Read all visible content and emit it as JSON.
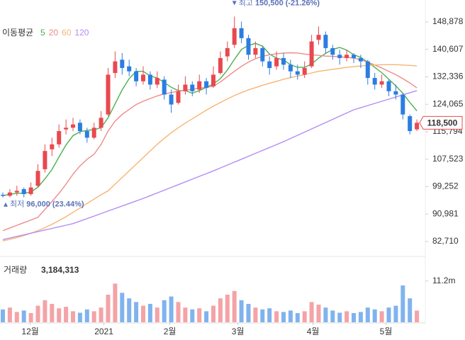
{
  "chart_data": {
    "type": "candlestick",
    "legend_label": "이동평균",
    "xlim": [
      -0.404,
      60.202
    ],
    "xticks": [
      {
        "value": 3.9,
        "label": "12월"
      },
      {
        "value": 14.4,
        "label": "2021"
      },
      {
        "value": 23.8,
        "label": "2월"
      },
      {
        "value": 33.5,
        "label": "3월"
      },
      {
        "value": 44.2,
        "label": "4월"
      },
      {
        "value": 54.6,
        "label": "5월"
      }
    ],
    "ylim": [
      80789,
      153787
    ],
    "yticks": [
      {
        "value": 82710,
        "label": "82,710"
      },
      {
        "value": 90981,
        "label": "90,981"
      },
      {
        "value": 99252,
        "label": "99,252"
      },
      {
        "value": 107523,
        "label": "107,523"
      },
      {
        "value": 115794,
        "label": "115,794"
      },
      {
        "value": 124065,
        "label": "124,065"
      },
      {
        "value": 132336,
        "label": "132,336"
      },
      {
        "value": 140607,
        "label": "140,607"
      },
      {
        "value": 148878,
        "label": "148,878"
      }
    ],
    "grid": false,
    "up_color": "#e8494f",
    "down_color": "#2b7de1",
    "open": [
      96800,
      96500,
      97500,
      98500,
      97000,
      99500,
      104500,
      110500,
      112000,
      116500,
      117000,
      118500,
      116000,
      114000,
      117000,
      121000,
      133500,
      137500,
      135500,
      134000,
      131000,
      133000,
      130000,
      131500,
      127000,
      124500,
      128000,
      130000,
      128500,
      131000,
      129500,
      133500,
      138500,
      142000,
      147000,
      144000,
      139000,
      141000,
      137000,
      135500,
      138000,
      136000,
      134000,
      133000,
      135500,
      143500,
      145000,
      141000,
      139000,
      138000,
      139000,
      138000,
      137000,
      132000,
      130000,
      131000,
      128000,
      127000,
      120500,
      116500
    ],
    "high": [
      97500,
      98500,
      99500,
      99000,
      100500,
      106000,
      112000,
      114000,
      118000,
      119500,
      120000,
      119500,
      117000,
      118500,
      122000,
      135000,
      140000,
      139500,
      137500,
      135000,
      135500,
      134000,
      134000,
      132500,
      128500,
      130000,
      132500,
      131000,
      133000,
      132000,
      135500,
      140000,
      143000,
      150500,
      149000,
      145000,
      143000,
      141500,
      138500,
      140000,
      139500,
      137500,
      136000,
      137000,
      145000,
      147500,
      146000,
      142000,
      140500,
      140500,
      139500,
      139000,
      137500,
      133500,
      133000,
      131500,
      130000,
      127500,
      121000,
      119500
    ],
    "low": [
      96000,
      96000,
      96500,
      96000,
      96500,
      99000,
      103500,
      108500,
      111000,
      115000,
      116000,
      115000,
      112500,
      113500,
      116000,
      120500,
      132000,
      133000,
      132500,
      129500,
      130000,
      128500,
      129000,
      125500,
      121500,
      124000,
      127000,
      126500,
      127500,
      127000,
      129000,
      133000,
      137000,
      141000,
      142500,
      137500,
      138000,
      135500,
      133000,
      134500,
      134500,
      132000,
      131500,
      132000,
      135000,
      142000,
      139500,
      137500,
      136000,
      137000,
      136500,
      135000,
      130000,
      128500,
      129000,
      126500,
      125500,
      119500,
      115000,
      116000
    ],
    "close": [
      96500,
      97500,
      98000,
      97000,
      99000,
      104000,
      110000,
      112000,
      116000,
      117000,
      118000,
      116000,
      114000,
      117000,
      120000,
      133000,
      137000,
      135000,
      134000,
      131000,
      133000,
      130000,
      132000,
      127000,
      124000,
      128000,
      130000,
      128000,
      131000,
      129000,
      133000,
      138000,
      141000,
      147000,
      144000,
      139000,
      141000,
      137000,
      135000,
      138000,
      136000,
      134000,
      133000,
      135000,
      143000,
      145000,
      141000,
      139000,
      138000,
      139000,
      138000,
      137000,
      132000,
      130000,
      131000,
      128000,
      127000,
      121000,
      116000,
      118500
    ],
    "moving_averages": [
      {
        "name": "5",
        "color": "#4cb050",
        "values": [
          96500,
          97000,
          97200,
          97300,
          97600,
          99100,
          101600,
          104400,
          108200,
          111800,
          114600,
          115800,
          116200,
          116400,
          117000,
          120000,
          124200,
          128400,
          131800,
          134000,
          134000,
          132600,
          132000,
          130600,
          129200,
          128200,
          128200,
          127400,
          128200,
          129200,
          130200,
          131800,
          134400,
          137600,
          140600,
          141800,
          142400,
          141600,
          139200,
          138000,
          137400,
          136000,
          135200,
          135200,
          136200,
          138000,
          139400,
          140600,
          141200,
          140400,
          139000,
          138200,
          136800,
          135200,
          133600,
          131600,
          129600,
          127400,
          124600,
          122100
        ]
      },
      {
        "name": "20",
        "color": "#f08a8a",
        "values": [
          86000,
          86800,
          87600,
          88400,
          89200,
          90000,
          92400,
          94800,
          97200,
          100000,
          103000,
          105500,
          107500,
          109000,
          112000,
          116000,
          119000,
          121000,
          122500,
          124000,
          125000,
          125800,
          126600,
          127200,
          127600,
          128000,
          128300,
          128600,
          128900,
          129200,
          129500,
          130800,
          132400,
          134000,
          135500,
          136800,
          137800,
          138500,
          139000,
          139300,
          139500,
          139600,
          139500,
          139200,
          139000,
          138800,
          138600,
          138500,
          138400,
          138200,
          138000,
          137500,
          136800,
          135900,
          135000,
          134000,
          133000,
          131800,
          130500,
          129000
        ]
      },
      {
        "name": "60",
        "color": "#f7b574",
        "values": [
          82900,
          83400,
          83900,
          84500,
          85200,
          86000,
          86900,
          87900,
          89000,
          90200,
          91500,
          92800,
          94200,
          95500,
          96800,
          98000,
          100000,
          102000,
          104000,
          106000,
          108000,
          110000,
          112000,
          113800,
          115500,
          117000,
          118400,
          119700,
          121000,
          122300,
          123500,
          124600,
          125700,
          126700,
          127600,
          128400,
          129100,
          129800,
          130400,
          131000,
          131600,
          132100,
          132600,
          133000,
          133500,
          134000,
          134300,
          134600,
          134900,
          135200,
          135400,
          135600,
          135800,
          135900,
          136000,
          136000,
          136000,
          135900,
          135800,
          135600
        ]
      },
      {
        "name": "120",
        "color": "#b48cf2",
        "values": [
          83300,
          83780,
          84260,
          84740,
          85220,
          85700,
          86180,
          86660,
          87140,
          87620,
          88100,
          88860,
          89620,
          90380,
          91140,
          91900,
          92660,
          93420,
          94180,
          94940,
          95700,
          96530,
          97360,
          98190,
          99020,
          99850,
          100680,
          101510,
          102340,
          103170,
          104000,
          104880,
          105760,
          106640,
          107520,
          108400,
          109280,
          110160,
          111040,
          111920,
          112800,
          113760,
          114720,
          115680,
          116640,
          117600,
          118560,
          119520,
          120480,
          121440,
          122400,
          123040,
          123690,
          124330,
          124980,
          125620,
          126270,
          126910,
          127560,
          128200
        ]
      }
    ],
    "high_annotation": {
      "text": "최고",
      "value": 150500,
      "label": "150,500",
      "change": "(-21.26%)",
      "x": 33
    },
    "low_annotation": {
      "text": "최저",
      "value": 96000,
      "label": "96,000",
      "change": "(23.44%)",
      "x": 0
    },
    "current_label": "118,500",
    "volume": {
      "label": "거래량",
      "current_label": "3,184,313",
      "ylim": [
        0,
        12500000
      ],
      "yticks": [
        {
          "value": 11200000,
          "label": "11.2m"
        }
      ],
      "up_color": "#f4a3a6",
      "down_color": "#80b3ee",
      "values": [
        3500000,
        4000000,
        2800000,
        3200000,
        2500000,
        4500000,
        6000000,
        5000000,
        3800000,
        4200000,
        3000000,
        2600000,
        3500000,
        3000000,
        4000000,
        7500000,
        10500000,
        8000000,
        6500000,
        5500000,
        4500000,
        5000000,
        4000000,
        6000000,
        7000000,
        5500000,
        4000000,
        3500000,
        3800000,
        3000000,
        4500000,
        6500000,
        7500000,
        8500000,
        6000000,
        5000000,
        4000000,
        3500000,
        3800000,
        3000000,
        2800000,
        3200000,
        2500000,
        3000000,
        5500000,
        4800000,
        4000000,
        3200000,
        2600000,
        3000000,
        2500000,
        2800000,
        4000000,
        3500000,
        3000000,
        4000000,
        4500000,
        10000000,
        6500000,
        3184313
      ]
    }
  }
}
